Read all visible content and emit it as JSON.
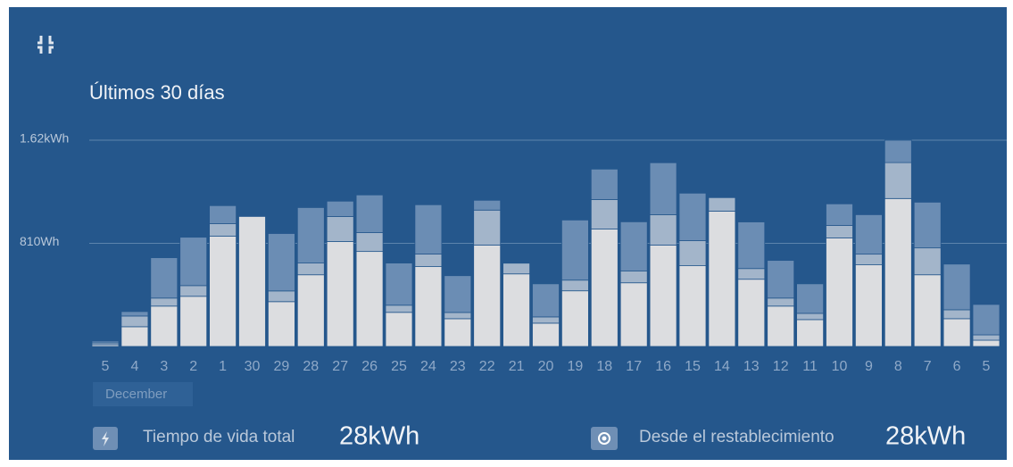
{
  "chart_data": {
    "type": "stacked-bar",
    "title": "Últimos 30 días",
    "categories": [
      "5",
      "4",
      "3",
      "2",
      "1",
      "30",
      "29",
      "28",
      "27",
      "26",
      "25",
      "24",
      "23",
      "22",
      "21",
      "20",
      "19",
      "18",
      "17",
      "16",
      "15",
      "14",
      "13",
      "12",
      "11",
      "10",
      "9",
      "8",
      "7",
      "6",
      "5"
    ],
    "x_label": "December",
    "series": [
      {
        "color": "#dcdde0",
        "values": [
          14,
          155,
          317,
          394,
          866,
          1021,
          352,
          563,
          824,
          746,
          268,
          627,
          218,
          796,
          570,
          183,
          437,
          922,
          500,
          796,
          634,
          1063,
          528,
          317,
          211,
          852,
          641,
          1162,
          563,
          218,
          49
        ]
      },
      {
        "color": "#a3b5ca",
        "values": [
          14,
          84,
          63,
          84,
          99,
          0,
          84,
          92,
          197,
          148,
          56,
          99,
          49,
          275,
          84,
          49,
          84,
          232,
          92,
          239,
          197,
          106,
          84,
          63,
          49,
          99,
          84,
          282,
          211,
          70,
          42
        ]
      },
      {
        "color": "#6b8db4",
        "values": [
          14,
          35,
          317,
          380,
          141,
          0,
          451,
          436,
          120,
          296,
          331,
          387,
          289,
          77,
          0,
          260,
          472,
          239,
          387,
          408,
          373,
          0,
          366,
          296,
          232,
          169,
          310,
          176,
          359,
          359,
          239
        ]
      }
    ],
    "ylim": [
      0,
      1620
    ],
    "yticks": [
      {
        "value": 810,
        "label": "810Wh"
      },
      {
        "value": 1620,
        "label": "1.62kWh"
      }
    ],
    "grid": true
  },
  "footer": {
    "lifetime_label": "Tiempo de vida total",
    "lifetime_value": "28kWh",
    "reset_label": "Desde el restablecimiento",
    "reset_value": "28kWh"
  }
}
